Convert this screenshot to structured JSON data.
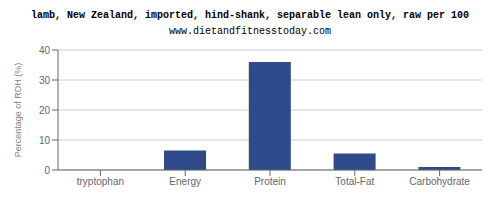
{
  "chart_data": {
    "type": "bar",
    "title": "lamb, New Zealand, imported, hind-shank, separable lean only, raw per 100",
    "subtitle": "www.dietandfitnesstoday.com",
    "categories": [
      "tryptophan",
      "Energy",
      "Protein",
      "Total-Fat",
      "Carbohydrate"
    ],
    "values": [
      0.0,
      6.5,
      36.0,
      5.5,
      1.0
    ],
    "color": "#2e4a8a",
    "ylabel": "Percentage of RDH (%)",
    "ylim": [
      0,
      40
    ],
    "yticks": [
      0,
      10,
      20,
      30,
      40
    ],
    "grid": true
  }
}
